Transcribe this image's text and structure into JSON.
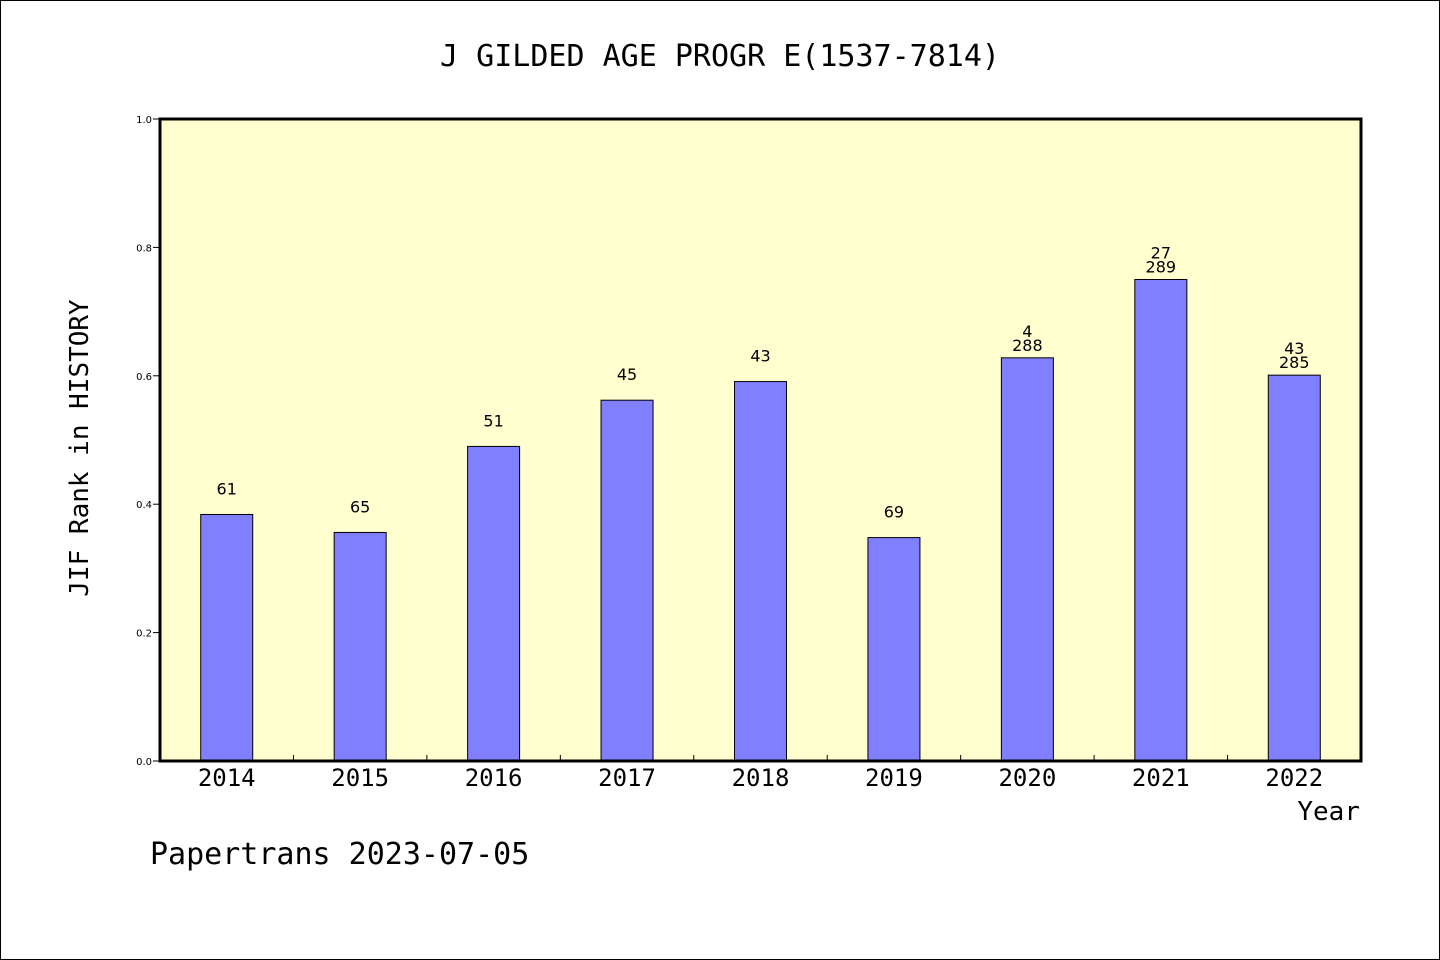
{
  "chart_data": {
    "type": "bar",
    "title": "J GILDED AGE PROGR E(1537-7814)",
    "xlabel": "Year",
    "ylabel": "JIF Rank in HISTORY",
    "categories": [
      "2014",
      "2015",
      "2016",
      "2017",
      "2018",
      "2019",
      "2020",
      "2021",
      "2022"
    ],
    "values": [
      0.384,
      0.356,
      0.49,
      0.562,
      0.591,
      0.348,
      0.628,
      0.75,
      0.601
    ],
    "labels": [
      [
        "61"
      ],
      [
        "65"
      ],
      [
        "51"
      ],
      [
        "45"
      ],
      [
        "43"
      ],
      [
        "69"
      ],
      [
        "4",
        "288"
      ],
      [
        "27",
        "289"
      ],
      [
        "43",
        "285"
      ]
    ],
    "ylim": [
      0,
      1.0
    ],
    "yticks": [
      "0.0",
      "0.2",
      "0.4",
      "0.6",
      "0.8",
      "1.0"
    ],
    "grid": false,
    "colors": {
      "bar": "#8080ff",
      "plot_bg": "#ffffd0",
      "edge": "#000000"
    }
  },
  "footer": "Papertrans 2023-07-05"
}
